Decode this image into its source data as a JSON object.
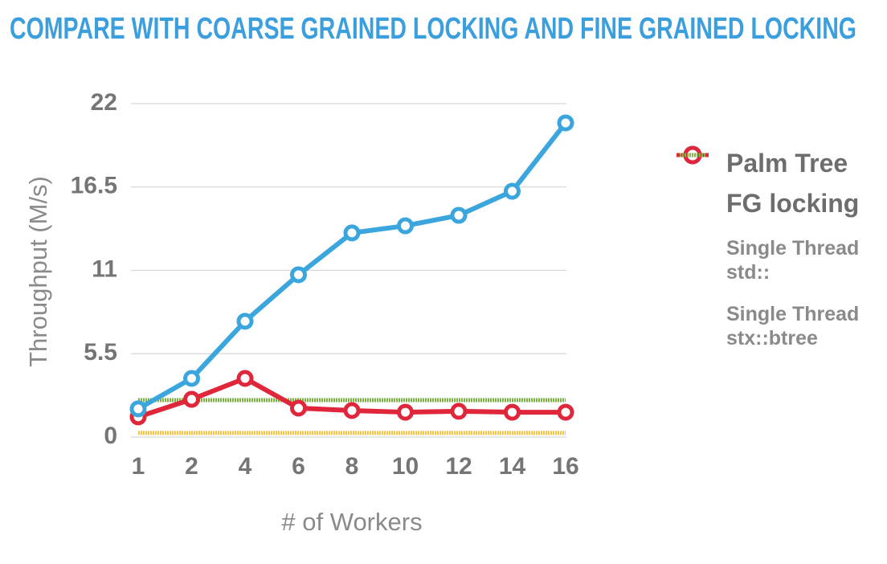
{
  "chart_data": {
    "type": "line",
    "title": "COMPARE WITH COARSE GRAINED LOCKING AND FINE GRAINED LOCKING",
    "x_label": "# of Workers",
    "y_label": "Throughput (M/s)",
    "categories": [
      "1",
      "2",
      "4",
      "6",
      "8",
      "10",
      "12",
      "14",
      "16"
    ],
    "series": [
      {
        "name": "Palm Tree",
        "color": "#3aa6dd",
        "markers": true,
        "values": [
          1.86,
          3.87,
          7.64,
          10.71,
          13.47,
          13.94,
          14.63,
          16.22,
          20.73
        ]
      },
      {
        "name": "FG locking",
        "color": "#e0263a",
        "markers": true,
        "values": [
          1.33,
          2.49,
          3.87,
          1.91,
          1.75,
          1.64,
          1.7,
          1.64,
          1.64
        ]
      },
      {
        "name": "Single Thread std::",
        "color": "#f6c445",
        "markers": false,
        "values": [
          0.27,
          0.27,
          0.27,
          0.27,
          0.27,
          0.27,
          0.27,
          0.27,
          0.27
        ]
      },
      {
        "name": "Single Thread stx::btree",
        "color": "#7cb342",
        "markers": false,
        "values": [
          2.44,
          2.44,
          2.44,
          2.44,
          2.44,
          2.44,
          2.44,
          2.44,
          2.44
        ]
      }
    ],
    "ylim": [
      0,
      22
    ],
    "yticks": [
      0,
      5.5,
      11,
      16.5,
      22
    ],
    "grid": true,
    "legend": "right"
  }
}
